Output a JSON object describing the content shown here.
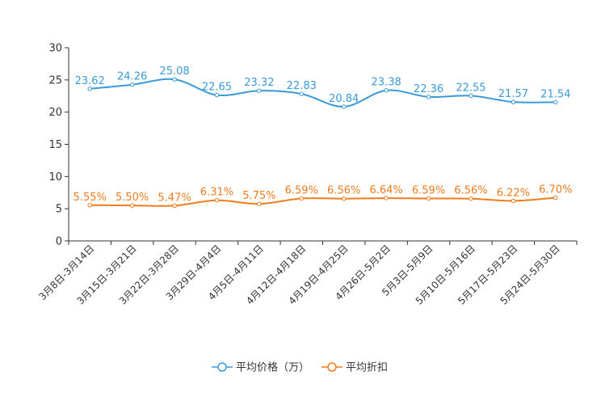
{
  "chart_data": {
    "type": "line",
    "title": "",
    "xlabel": "",
    "ylabel": "",
    "ylim": [
      0,
      30
    ],
    "yticks": [
      0,
      5,
      10,
      15,
      20,
      25,
      30
    ],
    "grid": false,
    "legend_position": "bottom-center",
    "categories": [
      "3月8日-3月14日",
      "3月15日-3月21日",
      "3月22日-3月28日",
      "3月29日-4月4日",
      "4月5日-4月11日",
      "4月12日-4月18日",
      "4月19日-4月25日",
      "4月26日-5月2日",
      "5月3日-5月9日",
      "5月10日-5月16日",
      "5月17日-5月23日",
      "5月24日-5月30日"
    ],
    "series": [
      {
        "name": "平均价格（万）",
        "color": "#3a9ad9",
        "values": [
          23.62,
          24.26,
          25.08,
          22.65,
          23.32,
          22.83,
          20.84,
          23.38,
          22.36,
          22.55,
          21.57,
          21.54
        ],
        "labels": [
          "23.62",
          "24.26",
          "25.08",
          "22.65",
          "23.32",
          "22.83",
          "20.84",
          "23.38",
          "22.36",
          "22.55",
          "21.57",
          "21.54"
        ]
      },
      {
        "name": "平均折扣",
        "color": "#f07c1e",
        "values": [
          5.55,
          5.5,
          5.47,
          6.31,
          5.75,
          6.59,
          6.56,
          6.64,
          6.59,
          6.56,
          6.22,
          6.7
        ],
        "labels": [
          "5.55%",
          "5.50%",
          "5.47%",
          "6.31%",
          "5.75%",
          "6.59%",
          "6.56%",
          "6.64%",
          "6.59%",
          "6.56%",
          "6.22%",
          "6.70%"
        ]
      }
    ]
  }
}
